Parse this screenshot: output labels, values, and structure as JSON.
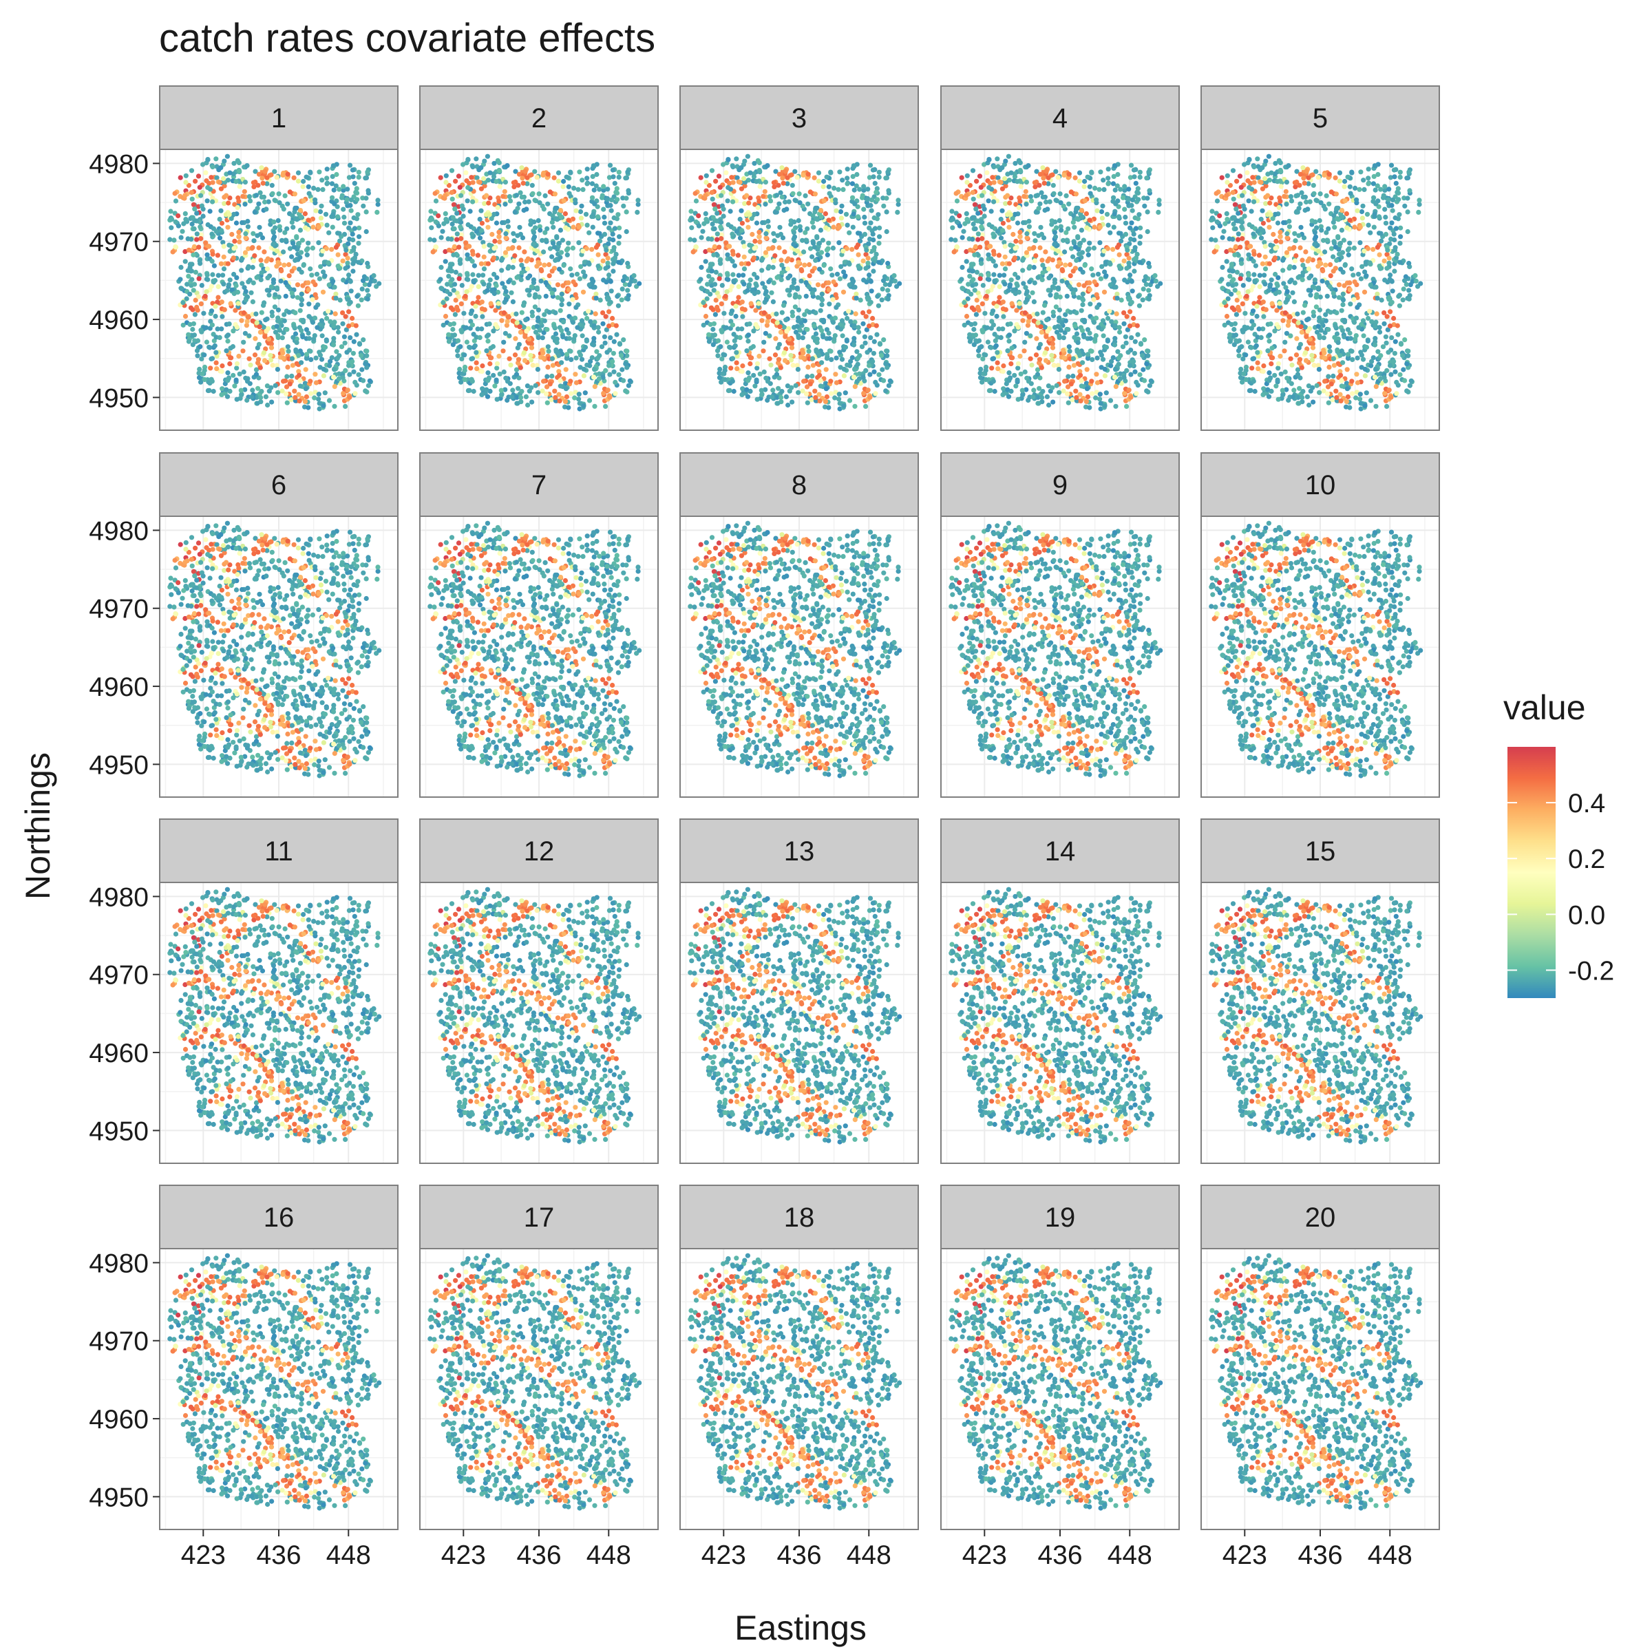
{
  "chart_data": {
    "type": "scatter",
    "title": "catch rates covariate effects",
    "xlabel": "Eastings",
    "ylabel": "Northings",
    "facets": [
      "1",
      "2",
      "3",
      "4",
      "5",
      "6",
      "7",
      "8",
      "9",
      "10",
      "11",
      "12",
      "13",
      "14",
      "15",
      "16",
      "17",
      "18",
      "19",
      "20"
    ],
    "facet_layout": {
      "nrow": 4,
      "ncol": 5
    },
    "xlim": [
      415.5,
      456.5
    ],
    "ylim": [
      4945.8,
      4981.8
    ],
    "x_ticks": [
      423,
      436,
      448
    ],
    "x_tick_labels": [
      "423",
      "436",
      "448"
    ],
    "y_ticks": [
      4950,
      4960,
      4970,
      4980
    ],
    "y_tick_labels": [
      "4950",
      "4960",
      "4970",
      "4980"
    ],
    "grid": true,
    "color_scale": {
      "name": "value",
      "type": "continuous",
      "palette": "Spectral (reversed)",
      "limits": [
        -0.3,
        0.6
      ],
      "breaks": [
        -0.2,
        0.0,
        0.2,
        0.4
      ],
      "break_labels": [
        "-0.2",
        "0.0",
        "0.2",
        "0.4"
      ],
      "colors": [
        "#3288bd",
        "#66c2a5",
        "#abdda4",
        "#e6f598",
        "#ffffbf",
        "#fee08b",
        "#fdae61",
        "#f46d43",
        "#d53e4f"
      ]
    },
    "legend_position": "right",
    "points_per_facet_approx": 2400,
    "value_pattern": "Most points near -0.25 (blue); points along stream-like corridors near 0.4-0.5 (orange); scattered points near 0.6 (red) in western area; some mid values (green)"
  }
}
